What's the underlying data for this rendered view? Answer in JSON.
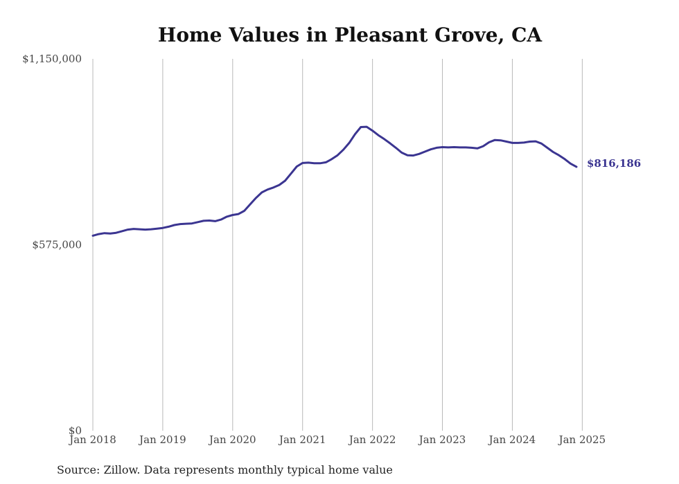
{
  "chart_data": {
    "type": "line",
    "title": "Home Values in Pleasant Grove, CA",
    "xlabel": "",
    "ylabel": "",
    "ylim": [
      0,
      1150000
    ],
    "y_ticks": [
      {
        "value": 0,
        "label": "$0"
      },
      {
        "value": 575000,
        "label": "$575,000"
      },
      {
        "value": 1150000,
        "label": "$1,150,000"
      }
    ],
    "x_ticks": [
      {
        "value": "2018-01",
        "label": "Jan 2018"
      },
      {
        "value": "2019-01",
        "label": "Jan 2019"
      },
      {
        "value": "2020-01",
        "label": "Jan 2020"
      },
      {
        "value": "2021-01",
        "label": "Jan 2021"
      },
      {
        "value": "2022-01",
        "label": "Jan 2022"
      },
      {
        "value": "2023-01",
        "label": "Jan 2023"
      },
      {
        "value": "2024-01",
        "label": "Jan 2024"
      },
      {
        "value": "2025-01",
        "label": "Jan 2025"
      }
    ],
    "xlim": [
      "2018-01",
      "2025-05"
    ],
    "grid": "vertical",
    "series": [
      {
        "color": "#3b3591",
        "end_label": "$816,186",
        "points": [
          [
            "2018-01",
            603000
          ],
          [
            "2018-02",
            608000
          ],
          [
            "2018-03",
            611000
          ],
          [
            "2018-04",
            610000
          ],
          [
            "2018-05",
            612000
          ],
          [
            "2018-06",
            617000
          ],
          [
            "2018-07",
            622000
          ],
          [
            "2018-08",
            624000
          ],
          [
            "2018-09",
            623000
          ],
          [
            "2018-10",
            622000
          ],
          [
            "2018-11",
            623000
          ],
          [
            "2018-12",
            625000
          ],
          [
            "2019-01",
            627000
          ],
          [
            "2019-02",
            631000
          ],
          [
            "2019-03",
            636000
          ],
          [
            "2019-04",
            639000
          ],
          [
            "2019-05",
            640000
          ],
          [
            "2019-06",
            641000
          ],
          [
            "2019-07",
            645000
          ],
          [
            "2019-08",
            649000
          ],
          [
            "2019-09",
            650000
          ],
          [
            "2019-10",
            648000
          ],
          [
            "2019-11",
            653000
          ],
          [
            "2019-12",
            662000
          ],
          [
            "2020-01",
            667000
          ],
          [
            "2020-02",
            670000
          ],
          [
            "2020-03",
            680000
          ],
          [
            "2020-04",
            700000
          ],
          [
            "2020-05",
            720000
          ],
          [
            "2020-06",
            737000
          ],
          [
            "2020-07",
            746000
          ],
          [
            "2020-08",
            752000
          ],
          [
            "2020-09",
            760000
          ],
          [
            "2020-10",
            773000
          ],
          [
            "2020-11",
            795000
          ],
          [
            "2020-12",
            817000
          ],
          [
            "2021-01",
            828000
          ],
          [
            "2021-02",
            829000
          ],
          [
            "2021-03",
            827000
          ],
          [
            "2021-04",
            827000
          ],
          [
            "2021-05",
            830000
          ],
          [
            "2021-06",
            840000
          ],
          [
            "2021-07",
            852000
          ],
          [
            "2021-08",
            869000
          ],
          [
            "2021-09",
            890000
          ],
          [
            "2021-10",
            917000
          ],
          [
            "2021-11",
            939000
          ],
          [
            "2021-12",
            940000
          ],
          [
            "2022-01",
            928000
          ],
          [
            "2022-02",
            914000
          ],
          [
            "2022-03",
            902000
          ],
          [
            "2022-04",
            889000
          ],
          [
            "2022-05",
            875000
          ],
          [
            "2022-06",
            860000
          ],
          [
            "2022-07",
            852000
          ],
          [
            "2022-08",
            851000
          ],
          [
            "2022-09",
            856000
          ],
          [
            "2022-10",
            863000
          ],
          [
            "2022-11",
            870000
          ],
          [
            "2022-12",
            875000
          ],
          [
            "2023-01",
            877000
          ],
          [
            "2023-02",
            876000
          ],
          [
            "2023-03",
            877000
          ],
          [
            "2023-04",
            876000
          ],
          [
            "2023-05",
            876000
          ],
          [
            "2023-06",
            875000
          ],
          [
            "2023-07",
            873000
          ],
          [
            "2023-08",
            880000
          ],
          [
            "2023-09",
            892000
          ],
          [
            "2023-10",
            899000
          ],
          [
            "2023-11",
            898000
          ],
          [
            "2023-12",
            894000
          ],
          [
            "2024-01",
            890000
          ],
          [
            "2024-02",
            890000
          ],
          [
            "2024-03",
            891000
          ],
          [
            "2024-04",
            894000
          ],
          [
            "2024-05",
            895000
          ],
          [
            "2024-06",
            888000
          ],
          [
            "2024-07",
            875000
          ],
          [
            "2024-08",
            862000
          ],
          [
            "2024-09",
            852000
          ],
          [
            "2024-10",
            840000
          ],
          [
            "2024-11",
            826000
          ],
          [
            "2024-12",
            816186
          ]
        ]
      }
    ]
  },
  "source_note": "Source: Zillow. Data represents monthly typical home value"
}
